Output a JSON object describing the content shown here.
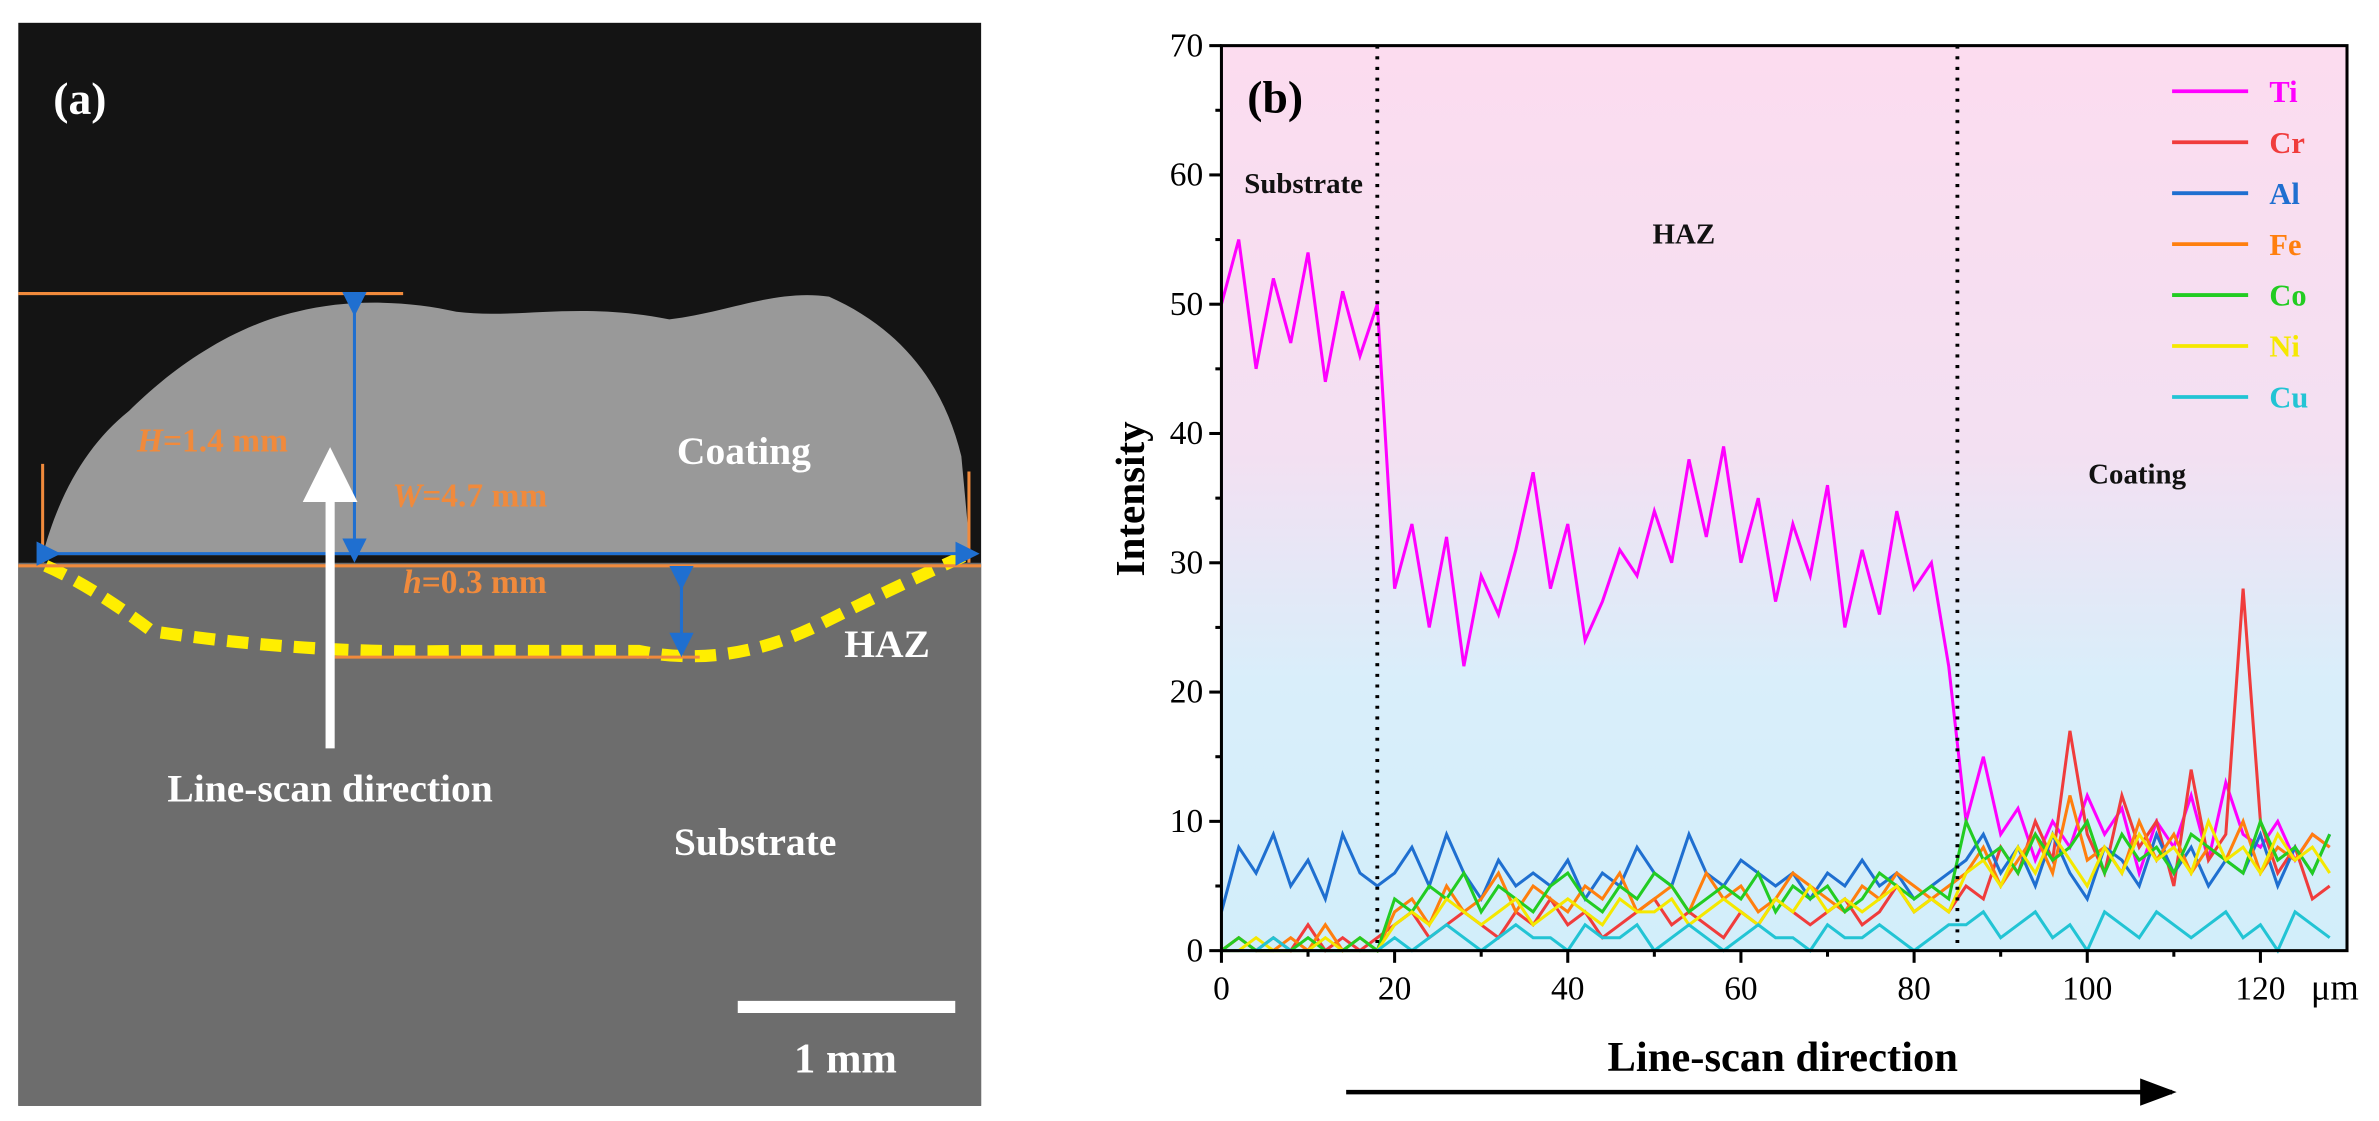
{
  "panel_a": {
    "label": "(a)",
    "height_label": {
      "symbol": "H",
      "text": "=1.4 mm"
    },
    "width_label": {
      "symbol": "W",
      "text": "=4.7 mm"
    },
    "haz_depth_label": {
      "symbol": "h",
      "text": "=0.3 mm"
    },
    "coating_label": "Coating",
    "haz_label": "HAZ",
    "direction_label": "Line-scan direction",
    "substrate_label": "Substrate",
    "scale_bar_label": "1 mm"
  },
  "chart_data": {
    "type": "line",
    "panel_label": "(b)",
    "ylabel": "Intensity",
    "xlabel": "Line-scan direction",
    "x_unit": "μm",
    "xlim": [
      0,
      130
    ],
    "xticks": [
      0,
      20,
      40,
      60,
      80,
      100,
      120
    ],
    "ylim": [
      0,
      70
    ],
    "yticks": [
      0,
      10,
      20,
      30,
      40,
      50,
      60,
      70
    ],
    "boundaries": [
      18,
      85
    ],
    "regions": [
      "Substrate",
      "HAZ",
      "Coating"
    ],
    "legend": "upper right",
    "x": [
      0,
      2,
      4,
      6,
      8,
      10,
      12,
      14,
      16,
      18,
      20,
      22,
      24,
      26,
      28,
      30,
      32,
      34,
      36,
      38,
      40,
      42,
      44,
      46,
      48,
      50,
      52,
      54,
      56,
      58,
      60,
      62,
      64,
      66,
      68,
      70,
      72,
      74,
      76,
      78,
      80,
      82,
      84,
      86,
      88,
      90,
      92,
      94,
      96,
      98,
      100,
      102,
      104,
      106,
      108,
      110,
      112,
      114,
      116,
      118,
      120,
      122,
      124,
      126,
      128
    ],
    "series": [
      {
        "name": "Ti",
        "color": "#ff00ff",
        "values": [
          50,
          55,
          45,
          52,
          47,
          54,
          44,
          51,
          46,
          50,
          28,
          33,
          25,
          32,
          22,
          29,
          26,
          31,
          37,
          28,
          33,
          24,
          27,
          31,
          29,
          34,
          30,
          38,
          32,
          39,
          30,
          35,
          27,
          33,
          29,
          36,
          25,
          31,
          26,
          34,
          28,
          30,
          22,
          10,
          15,
          9,
          11,
          7,
          10,
          8,
          12,
          9,
          11,
          6,
          10,
          8,
          12,
          7,
          13,
          9,
          8,
          10,
          7,
          9,
          8
        ]
      },
      {
        "name": "Cr",
        "color": "#f03c3c",
        "values": [
          0,
          1,
          0,
          1,
          0,
          2,
          0,
          1,
          0,
          1,
          2,
          3,
          1,
          2,
          3,
          2,
          1,
          3,
          2,
          4,
          2,
          3,
          1,
          2,
          3,
          4,
          2,
          3,
          2,
          1,
          3,
          2,
          4,
          3,
          2,
          3,
          4,
          2,
          3,
          5,
          3,
          4,
          3,
          5,
          4,
          8,
          6,
          10,
          7,
          17,
          9,
          6,
          12,
          8,
          10,
          5,
          14,
          7,
          9,
          28,
          10,
          6,
          8,
          4,
          5
        ]
      },
      {
        "name": "Al",
        "color": "#1f6fd0",
        "values": [
          3,
          8,
          6,
          9,
          5,
          7,
          4,
          9,
          6,
          5,
          6,
          8,
          5,
          9,
          6,
          4,
          7,
          5,
          6,
          5,
          7,
          4,
          6,
          5,
          8,
          6,
          5,
          9,
          6,
          5,
          7,
          6,
          5,
          6,
          4,
          6,
          5,
          7,
          5,
          6,
          4,
          5,
          6,
          7,
          9,
          6,
          8,
          5,
          9,
          6,
          4,
          8,
          7,
          5,
          9,
          6,
          8,
          5,
          7,
          6,
          9,
          5,
          8,
          6,
          9
        ]
      },
      {
        "name": "Fe",
        "color": "#ff7f0e",
        "values": [
          0,
          1,
          0,
          0,
          1,
          0,
          2,
          0,
          1,
          0,
          3,
          4,
          2,
          5,
          3,
          4,
          6,
          3,
          5,
          4,
          3,
          5,
          4,
          6,
          3,
          4,
          5,
          3,
          6,
          4,
          5,
          3,
          4,
          6,
          5,
          4,
          3,
          5,
          4,
          6,
          5,
          4,
          5,
          6,
          8,
          5,
          7,
          9,
          6,
          12,
          7,
          8,
          6,
          10,
          7,
          9,
          6,
          8,
          7,
          10,
          6,
          8,
          7,
          9,
          8
        ]
      },
      {
        "name": "Co",
        "color": "#22cc22",
        "values": [
          0,
          1,
          0,
          0,
          0,
          1,
          0,
          0,
          1,
          0,
          4,
          3,
          5,
          4,
          6,
          3,
          5,
          4,
          3,
          5,
          6,
          4,
          3,
          5,
          4,
          6,
          5,
          3,
          4,
          5,
          4,
          6,
          3,
          5,
          4,
          5,
          3,
          4,
          6,
          5,
          4,
          5,
          4,
          10,
          7,
          8,
          6,
          9,
          7,
          8,
          10,
          6,
          9,
          7,
          8,
          6,
          9,
          8,
          7,
          6,
          10,
          7,
          8,
          6,
          9
        ]
      },
      {
        "name": "Ni",
        "color": "#f5e800",
        "values": [
          0,
          0,
          1,
          0,
          0,
          0,
          1,
          0,
          0,
          0,
          2,
          3,
          2,
          4,
          3,
          2,
          3,
          4,
          2,
          3,
          4,
          3,
          2,
          4,
          3,
          3,
          4,
          2,
          3,
          4,
          3,
          2,
          4,
          3,
          5,
          3,
          4,
          3,
          4,
          5,
          3,
          4,
          3,
          6,
          7,
          5,
          8,
          6,
          9,
          7,
          5,
          8,
          6,
          9,
          7,
          8,
          6,
          10,
          7,
          8,
          6,
          9,
          7,
          8,
          6
        ]
      },
      {
        "name": "Cu",
        "color": "#22c4d4",
        "values": [
          0,
          0,
          0,
          1,
          0,
          0,
          0,
          0,
          0,
          0,
          1,
          0,
          1,
          2,
          1,
          0,
          1,
          2,
          1,
          1,
          0,
          2,
          1,
          1,
          2,
          0,
          1,
          2,
          1,
          0,
          1,
          2,
          1,
          1,
          0,
          2,
          1,
          1,
          2,
          1,
          0,
          1,
          2,
          2,
          3,
          1,
          2,
          3,
          1,
          2,
          0,
          3,
          2,
          1,
          3,
          2,
          1,
          2,
          3,
          1,
          2,
          0,
          3,
          2,
          1
        ]
      }
    ]
  }
}
